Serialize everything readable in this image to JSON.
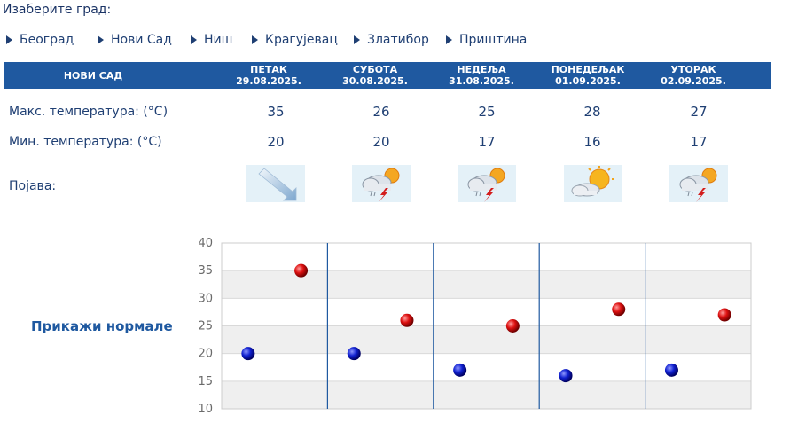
{
  "select_city_label": "Изаберите град:",
  "cities": [
    "Београд",
    "Нови Сад",
    "Ниш",
    "Крагујевац",
    "Златибор",
    "Приштина"
  ],
  "forecast": {
    "city": "НОВИ САД",
    "days": [
      {
        "name": "ПЕТАК",
        "date": "29.08.2025.",
        "max": "35",
        "min": "20",
        "icon": "wind-icon"
      },
      {
        "name": "СУБОТА",
        "date": "30.08.2025.",
        "max": "26",
        "min": "20",
        "icon": "thunderstorm-icon"
      },
      {
        "name": "НЕДЕЉА",
        "date": "31.08.2025.",
        "max": "25",
        "min": "17",
        "icon": "thunderstorm-icon"
      },
      {
        "name": "ПОНЕДЕЉАК",
        "date": "01.09.2025.",
        "max": "28",
        "min": "16",
        "icon": "partly-cloudy-icon"
      },
      {
        "name": "УТОРАК",
        "date": "02.09.2025.",
        "max": "27",
        "min": "17",
        "icon": "thunderstorm-icon"
      }
    ]
  },
  "labels": {
    "max_temp": "Макс. температура: (°C)",
    "min_temp": "Мин. температура: (°C)",
    "phenomenon": "Појава:"
  },
  "show_normals": "Прикажи нормале",
  "colors": {
    "header": "#1f59a0",
    "text": "#1f3f73",
    "max_marker": "#cc0000",
    "min_marker": "#0000cc"
  },
  "chart_data": {
    "type": "scatter",
    "categories": [
      "29.08.2025.",
      "30.08.2025.",
      "31.08.2025.",
      "01.09.2025.",
      "02.09.2025."
    ],
    "series": [
      {
        "values": [
          35,
          26,
          25,
          28,
          27
        ],
        "color": "#cc0000"
      },
      {
        "values": [
          20,
          20,
          17,
          16,
          17
        ],
        "color": "#0000cc"
      }
    ],
    "ylim": [
      10,
      40
    ],
    "yticks": [
      40,
      35,
      30,
      25,
      20,
      15,
      10
    ],
    "grid": true
  }
}
